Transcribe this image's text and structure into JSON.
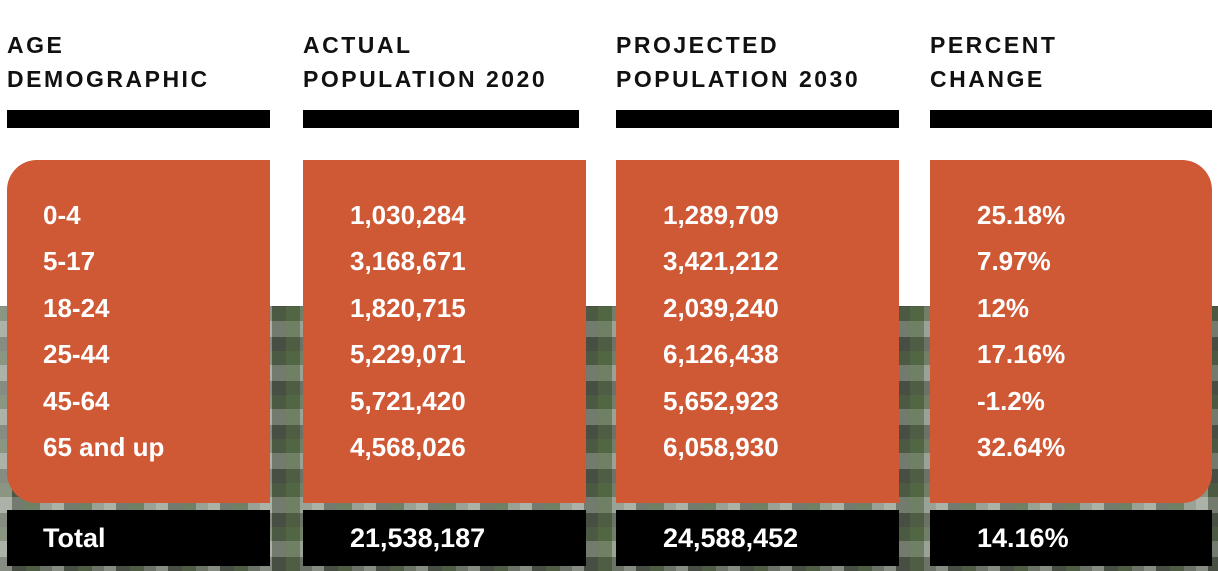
{
  "chart_data": {
    "type": "table",
    "columns": [
      {
        "line1": "AGE",
        "line2": "DEMOGRAPHIC"
      },
      {
        "line1": "ACTUAL",
        "line2": "POPULATION 2020"
      },
      {
        "line1": "PROJECTED",
        "line2": "POPULATION 2030"
      },
      {
        "line1": "PERCENT",
        "line2": "CHANGE"
      }
    ],
    "rows": [
      [
        "0-4",
        "1,030,284",
        "1,289,709",
        "25.18%"
      ],
      [
        "5-17",
        "3,168,671",
        "3,421,212",
        "7.97%"
      ],
      [
        "18-24",
        "1,820,715",
        "2,039,240",
        "12%"
      ],
      [
        "25-44",
        "5,229,071",
        "6,126,438",
        "17.16%"
      ],
      [
        "45-64",
        "5,721,420",
        "5,652,923",
        "-1.2%"
      ],
      [
        "65 and up",
        "4,568,026",
        "6,058,930",
        "32.64%"
      ]
    ],
    "total": [
      "Total",
      "21,538,187",
      "24,588,452",
      "14.16%"
    ]
  },
  "colors": {
    "panel": "#cf5835",
    "rule": "#000000",
    "text_light": "#ffffff",
    "text_dark": "#111111"
  }
}
